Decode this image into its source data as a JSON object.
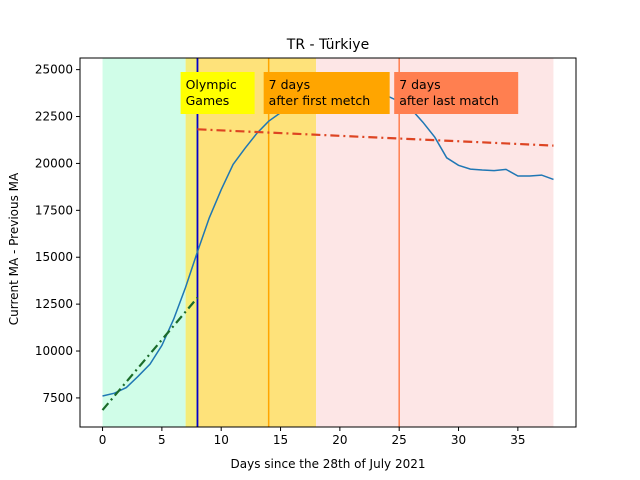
{
  "chart_data": {
    "type": "line",
    "title": "TR - Türkiye",
    "xlabel": "Days since the 28th of July 2021",
    "ylabel": "Current MA - Previous MA",
    "xlim": [
      -1.9,
      39.9
    ],
    "ylim": [
      5950,
      25620
    ],
    "xticks": [
      0,
      5,
      10,
      15,
      20,
      25,
      30,
      35
    ],
    "yticks": [
      7500,
      10000,
      12500,
      15000,
      17500,
      20000,
      22500,
      25000
    ],
    "grid": false,
    "colors": {
      "main_line": "#1f77b4",
      "trend_early": "#1a6b2a",
      "trend_late": "#dd4422",
      "olympics_line": "#0000cc",
      "first_match_line": "#ffa500",
      "last_match_line": "#ff7f50"
    },
    "bands": [
      {
        "name": "pre-games",
        "x0": 0,
        "x1": 7,
        "color": "#d0fde8"
      },
      {
        "name": "games-start",
        "x0": 7,
        "x1": 8,
        "color": "#f4ec78"
      },
      {
        "name": "games",
        "x0": 8,
        "x1": 18,
        "color": "#fee27a"
      },
      {
        "name": "post-games",
        "x0": 18,
        "x1": 38,
        "color": "#fde6e6"
      }
    ],
    "vlines": [
      {
        "name": "olympics",
        "x": 8,
        "color": "#0000cc"
      },
      {
        "name": "first-match",
        "x": 14,
        "color": "#ffa500"
      },
      {
        "name": "last-match",
        "x": 25,
        "color": "#ff7f50"
      }
    ],
    "annotations": [
      {
        "name": "olympic-games",
        "lines": [
          "Olympic",
          "Games"
        ],
        "x": 7,
        "bg": "#ffff00"
      },
      {
        "name": "first-match",
        "lines": [
          "7 days",
          "after first metch"
        ],
        "x": 14,
        "bg": "#ffa500"
      },
      {
        "name": "last-match",
        "lines": [
          "7 days",
          "after last match"
        ],
        "x": 25,
        "bg": "#ff7f50"
      }
    ],
    "series": [
      {
        "x": [
          0,
          1,
          2,
          3,
          4,
          5,
          6,
          7,
          8,
          9,
          10,
          11,
          12,
          13,
          14,
          15,
          16,
          17,
          18,
          19,
          20,
          21,
          22,
          23,
          24,
          25,
          26,
          27,
          28,
          29,
          30,
          31,
          32,
          33,
          34,
          35,
          36,
          37,
          38
        ],
        "values": [
          7600,
          7750,
          8050,
          8650,
          9300,
          10300,
          11700,
          13400,
          15300,
          17100,
          18600,
          19950,
          20800,
          21600,
          22250,
          22700,
          23050,
          23350,
          23550,
          23700,
          23800,
          23850,
          23850,
          23800,
          23600,
          23300,
          22900,
          22200,
          21400,
          20300,
          19900,
          19700,
          19650,
          19620,
          19680,
          19330,
          19330,
          19380,
          19150
        ]
      },
      {
        "x": [
          0,
          8
        ],
        "values": [
          6850,
          12850
        ],
        "style": "dashdot"
      },
      {
        "x": [
          8,
          38
        ],
        "values": [
          21820,
          20950
        ],
        "style": "dashdot"
      }
    ]
  }
}
